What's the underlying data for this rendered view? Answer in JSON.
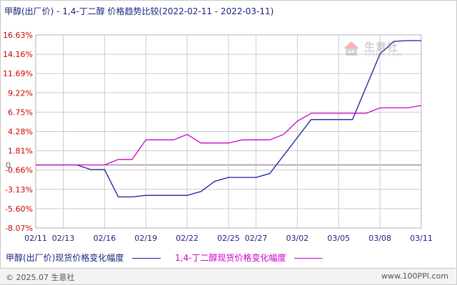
{
  "title": "甲醇(出厂价) - 1,4-丁二醇 价格趋势比较(2022-02-11 - 2022-03-11)",
  "watermark": {
    "brand": "生意社",
    "sub": "100PPI.COM"
  },
  "footer": {
    "copyright": "© 2025.07 生意社",
    "site": "www.100PPI.com"
  },
  "colors": {
    "series1": "#1a1aa0",
    "series2": "#cc00cc",
    "grid": "#cccccc",
    "zero": "#8a5a8a",
    "label": "#cc0000"
  },
  "chart_data": {
    "type": "line",
    "ylim": [
      -8.07,
      16.63
    ],
    "yticks": [
      "16.63%",
      "14.16%",
      "11.69%",
      "9.22%",
      "6.75%",
      "4.28%",
      "1.81%",
      "-0.66%",
      "-3.13%",
      "-5.60%",
      "-8.07%"
    ],
    "ytick_values": [
      16.63,
      14.16,
      11.69,
      9.22,
      6.75,
      4.28,
      1.81,
      -0.66,
      -3.13,
      -5.6,
      -8.07
    ],
    "zero_label": "0",
    "x": [
      "02/11",
      "02/12",
      "02/13",
      "02/14",
      "02/15",
      "02/16",
      "02/17",
      "02/18",
      "02/19",
      "02/20",
      "02/21",
      "02/22",
      "02/23",
      "02/24",
      "02/25",
      "02/26",
      "02/27",
      "02/28",
      "03/01",
      "03/02",
      "03/03",
      "03/04",
      "03/05",
      "03/06",
      "03/07",
      "03/08",
      "03/09",
      "03/10",
      "03/11"
    ],
    "xticks": [
      "02/11",
      "02/13",
      "02/16",
      "02/19",
      "02/22",
      "02/25",
      "02/27",
      "03/02",
      "03/05",
      "03/08",
      "03/11"
    ],
    "xtick_dates": [
      "02/11",
      "02/13",
      "02/16",
      "02/19",
      "02/22",
      "02/25",
      "02/27",
      "03/02",
      "03/05",
      "03/08",
      "03/11"
    ],
    "series": [
      {
        "name": "甲醇(出厂价)现货价格变化幅度",
        "values": [
          0,
          0,
          0,
          0,
          -0.6,
          -0.6,
          -4.1,
          -4.1,
          -3.9,
          -3.9,
          -3.9,
          -3.9,
          -3.4,
          -2.1,
          -1.6,
          -1.6,
          -1.6,
          -1.1,
          1.2,
          3.5,
          5.8,
          5.8,
          5.8,
          5.8,
          10.0,
          14.2,
          15.8,
          15.9,
          15.9
        ]
      },
      {
        "name": "1,4-丁二醇现货价格变化幅度",
        "values": [
          0,
          0,
          0,
          0,
          0,
          0,
          0.7,
          0.7,
          3.2,
          3.2,
          3.2,
          3.9,
          2.8,
          2.8,
          2.8,
          3.2,
          3.2,
          3.2,
          3.9,
          5.6,
          6.6,
          6.6,
          6.6,
          6.6,
          6.6,
          7.3,
          7.3,
          7.3,
          7.6
        ]
      }
    ],
    "legend": "bottom-left",
    "grid": true
  }
}
